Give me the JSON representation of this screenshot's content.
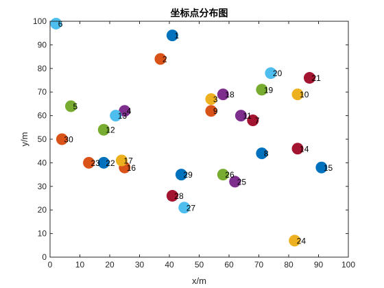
{
  "chart_data": {
    "type": "scatter",
    "title": "坐标点分布图",
    "xlabel": "x/m",
    "ylabel": "y/m",
    "xlim": [
      0,
      100
    ],
    "ylim": [
      0,
      100
    ],
    "xticks": [
      0,
      10,
      20,
      30,
      40,
      50,
      60,
      70,
      80,
      90,
      100
    ],
    "yticks": [
      0,
      10,
      20,
      30,
      40,
      50,
      60,
      70,
      80,
      90,
      100
    ],
    "grid": false,
    "colors": {
      "blue": "#0072BD",
      "orange": "#D95319",
      "yellow": "#EDB120",
      "purple": "#7E2F8E",
      "green": "#77AC30",
      "cyan": "#4DBEEE",
      "red": "#A2142F"
    },
    "points": [
      {
        "label": "1",
        "x": 41,
        "y": 94,
        "color": "blue"
      },
      {
        "label": "2",
        "x": 37,
        "y": 84,
        "color": "orange"
      },
      {
        "label": "3",
        "x": 54,
        "y": 67,
        "color": "yellow"
      },
      {
        "label": "4",
        "x": 25,
        "y": 62,
        "color": "purple"
      },
      {
        "label": "5",
        "x": 7,
        "y": 64,
        "color": "green"
      },
      {
        "label": "6",
        "x": 2,
        "y": 99,
        "color": "cyan"
      },
      {
        "label": "7",
        "x": 68,
        "y": 58,
        "color": "red"
      },
      {
        "label": "8",
        "x": 71,
        "y": 44,
        "color": "blue"
      },
      {
        "label": "9",
        "x": 54,
        "y": 62,
        "color": "orange"
      },
      {
        "label": "10",
        "x": 83,
        "y": 69,
        "color": "yellow"
      },
      {
        "label": "11",
        "x": 64,
        "y": 60,
        "color": "purple"
      },
      {
        "label": "12",
        "x": 18,
        "y": 54,
        "color": "green"
      },
      {
        "label": "13",
        "x": 22,
        "y": 60,
        "color": "cyan"
      },
      {
        "label": "14",
        "x": 83,
        "y": 46,
        "color": "red"
      },
      {
        "label": "15",
        "x": 91,
        "y": 38,
        "color": "blue"
      },
      {
        "label": "16",
        "x": 25,
        "y": 38,
        "color": "orange"
      },
      {
        "label": "17",
        "x": 24,
        "y": 41,
        "color": "yellow"
      },
      {
        "label": "18",
        "x": 58,
        "y": 69,
        "color": "purple"
      },
      {
        "label": "19",
        "x": 71,
        "y": 71,
        "color": "green"
      },
      {
        "label": "20",
        "x": 74,
        "y": 78,
        "color": "cyan"
      },
      {
        "label": "21",
        "x": 87,
        "y": 76,
        "color": "red"
      },
      {
        "label": "22",
        "x": 18,
        "y": 40,
        "color": "blue"
      },
      {
        "label": "23",
        "x": 13,
        "y": 40,
        "color": "orange"
      },
      {
        "label": "24",
        "x": 82,
        "y": 7,
        "color": "yellow"
      },
      {
        "label": "25",
        "x": 62,
        "y": 32,
        "color": "purple"
      },
      {
        "label": "26",
        "x": 58,
        "y": 35,
        "color": "green"
      },
      {
        "label": "27",
        "x": 45,
        "y": 21,
        "color": "cyan"
      },
      {
        "label": "28",
        "x": 41,
        "y": 26,
        "color": "red"
      },
      {
        "label": "29",
        "x": 44,
        "y": 35,
        "color": "blue"
      },
      {
        "label": "30",
        "x": 4,
        "y": 50,
        "color": "orange"
      }
    ]
  }
}
